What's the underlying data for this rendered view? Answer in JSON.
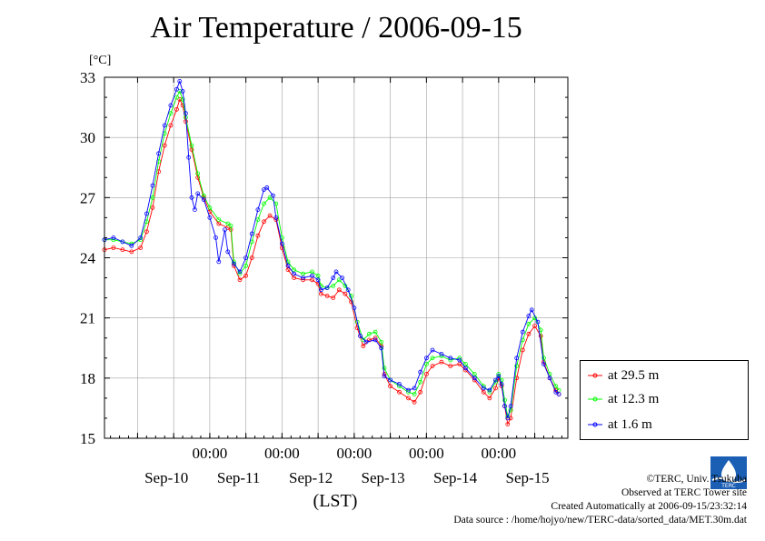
{
  "chart_data": {
    "type": "line",
    "title": "Air Temperature / 2006-09-15",
    "ylabel": "[°C]",
    "xlabel": "(LST)",
    "ylim": [
      15,
      33
    ],
    "yticks": [
      15,
      18,
      21,
      24,
      27,
      30,
      33
    ],
    "xlim": [
      "2006-09-09 13:00",
      "2006-09-15 23:00"
    ],
    "xtick_labels": [
      "00:00",
      "00:00",
      "00:00",
      "00:00",
      "00:00"
    ],
    "xtick_positions": [
      "2006-09-11 00:00",
      "2006-09-12 00:00",
      "2006-09-13 00:00",
      "2006-09-14 00:00",
      "2006-09-15 00:00"
    ],
    "day_labels": [
      "Sep-10",
      "Sep-11",
      "Sep-12",
      "Sep-13",
      "Sep-14",
      "Sep-15"
    ],
    "grid": true,
    "legend": "bottom-right, outside plot",
    "series": [
      {
        "name": "at 29.5 m",
        "color": "#ff0000",
        "points": [
          [
            "2006-09-09 13:00",
            24.4
          ],
          [
            "2006-09-09 16:00",
            24.5
          ],
          [
            "2006-09-09 19:00",
            24.4
          ],
          [
            "2006-09-09 22:00",
            24.3
          ],
          [
            "2006-09-10 01:00",
            24.5
          ],
          [
            "2006-09-10 03:00",
            25.3
          ],
          [
            "2006-09-10 05:00",
            26.5
          ],
          [
            "2006-09-10 07:00",
            28.3
          ],
          [
            "2006-09-10 09:00",
            29.6
          ],
          [
            "2006-09-10 11:00",
            30.6
          ],
          [
            "2006-09-10 13:00",
            31.4
          ],
          [
            "2006-09-10 14:00",
            31.9
          ],
          [
            "2006-09-10 15:00",
            31.6
          ],
          [
            "2006-09-10 16:00",
            30.8
          ],
          [
            "2006-09-10 18:00",
            29.4
          ],
          [
            "2006-09-10 20:00",
            28.0
          ],
          [
            "2006-09-10 22:00",
            27.0
          ],
          [
            "2006-09-11 00:00",
            26.3
          ],
          [
            "2006-09-11 03:00",
            25.7
          ],
          [
            "2006-09-11 06:00",
            25.5
          ],
          [
            "2006-09-11 07:00",
            25.4
          ],
          [
            "2006-09-11 08:00",
            23.6
          ],
          [
            "2006-09-11 10:00",
            22.9
          ],
          [
            "2006-09-11 12:00",
            23.1
          ],
          [
            "2006-09-11 14:00",
            24.0
          ],
          [
            "2006-09-11 16:00",
            25.1
          ],
          [
            "2006-09-11 18:00",
            25.8
          ],
          [
            "2006-09-11 20:00",
            26.1
          ],
          [
            "2006-09-11 22:00",
            25.9
          ],
          [
            "2006-09-12 00:00",
            24.5
          ],
          [
            "2006-09-12 02:00",
            23.4
          ],
          [
            "2006-09-12 04:00",
            23.0
          ],
          [
            "2006-09-12 07:00",
            22.9
          ],
          [
            "2006-09-12 10:00",
            22.9
          ],
          [
            "2006-09-12 12:00",
            22.7
          ],
          [
            "2006-09-12 13:00",
            22.2
          ],
          [
            "2006-09-12 15:00",
            22.1
          ],
          [
            "2006-09-12 17:00",
            22.0
          ],
          [
            "2006-09-12 19:00",
            22.4
          ],
          [
            "2006-09-12 21:00",
            22.2
          ],
          [
            "2006-09-12 23:00",
            21.8
          ],
          [
            "2006-09-13 01:00",
            20.5
          ],
          [
            "2006-09-13 03:00",
            19.6
          ],
          [
            "2006-09-13 05:00",
            19.9
          ],
          [
            "2006-09-13 07:00",
            20.0
          ],
          [
            "2006-09-13 09:00",
            19.6
          ],
          [
            "2006-09-13 10:00",
            18.2
          ],
          [
            "2006-09-13 12:00",
            17.6
          ],
          [
            "2006-09-13 15:00",
            17.3
          ],
          [
            "2006-09-13 18:00",
            17.0
          ],
          [
            "2006-09-13 20:00",
            16.8
          ],
          [
            "2006-09-13 22:00",
            17.3
          ],
          [
            "2006-09-14 00:00",
            18.2
          ],
          [
            "2006-09-14 02:00",
            18.6
          ],
          [
            "2006-09-14 05:00",
            18.8
          ],
          [
            "2006-09-14 08:00",
            18.6
          ],
          [
            "2006-09-14 11:00",
            18.7
          ],
          [
            "2006-09-14 13:00",
            18.4
          ],
          [
            "2006-09-14 16:00",
            17.9
          ],
          [
            "2006-09-14 19:00",
            17.3
          ],
          [
            "2006-09-14 21:00",
            17.0
          ],
          [
            "2006-09-14 23:00",
            17.5
          ],
          [
            "2006-09-15 00:00",
            18.0
          ],
          [
            "2006-09-15 01:00",
            17.6
          ],
          [
            "2006-09-15 02:00",
            16.6
          ],
          [
            "2006-09-15 03:00",
            15.7
          ],
          [
            "2006-09-15 04:00",
            16.0
          ],
          [
            "2006-09-15 06:00",
            18.0
          ],
          [
            "2006-09-15 08:00",
            19.4
          ],
          [
            "2006-09-15 10:00",
            20.2
          ],
          [
            "2006-09-15 12:00",
            20.6
          ],
          [
            "2006-09-15 14:00",
            20.1
          ],
          [
            "2006-09-15 15:00",
            18.8
          ],
          [
            "2006-09-15 17:00",
            18.0
          ],
          [
            "2006-09-15 19:00",
            17.4
          ],
          [
            "2006-09-15 20:00",
            17.2
          ]
        ]
      },
      {
        "name": "at 12.3 m",
        "color": "#00ff00",
        "points": [
          [
            "2006-09-09 13:00",
            24.9
          ],
          [
            "2006-09-09 16:00",
            24.9
          ],
          [
            "2006-09-09 19:00",
            24.8
          ],
          [
            "2006-09-09 22:00",
            24.7
          ],
          [
            "2006-09-10 01:00",
            24.9
          ],
          [
            "2006-09-10 03:00",
            25.8
          ],
          [
            "2006-09-10 05:00",
            27.0
          ],
          [
            "2006-09-10 07:00",
            28.8
          ],
          [
            "2006-09-10 09:00",
            30.2
          ],
          [
            "2006-09-10 11:00",
            31.2
          ],
          [
            "2006-09-10 13:00",
            32.0
          ],
          [
            "2006-09-10 14:00",
            32.3
          ],
          [
            "2006-09-10 15:00",
            31.9
          ],
          [
            "2006-09-10 16:00",
            31.0
          ],
          [
            "2006-09-10 18:00",
            29.6
          ],
          [
            "2006-09-10 20:00",
            28.2
          ],
          [
            "2006-09-10 22:00",
            27.1
          ],
          [
            "2006-09-11 00:00",
            26.5
          ],
          [
            "2006-09-11 03:00",
            25.9
          ],
          [
            "2006-09-11 06:00",
            25.7
          ],
          [
            "2006-09-11 07:00",
            25.6
          ],
          [
            "2006-09-11 08:00",
            23.8
          ],
          [
            "2006-09-11 10:00",
            23.2
          ],
          [
            "2006-09-11 12:00",
            23.6
          ],
          [
            "2006-09-11 14:00",
            24.8
          ],
          [
            "2006-09-11 16:00",
            25.9
          ],
          [
            "2006-09-11 18:00",
            26.7
          ],
          [
            "2006-09-11 20:00",
            27.0
          ],
          [
            "2006-09-11 22:00",
            26.7
          ],
          [
            "2006-09-12 00:00",
            25.0
          ],
          [
            "2006-09-12 02:00",
            23.8
          ],
          [
            "2006-09-12 04:00",
            23.4
          ],
          [
            "2006-09-12 07:00",
            23.2
          ],
          [
            "2006-09-12 10:00",
            23.3
          ],
          [
            "2006-09-12 12:00",
            23.1
          ],
          [
            "2006-09-12 13:00",
            22.6
          ],
          [
            "2006-09-12 15:00",
            22.5
          ],
          [
            "2006-09-12 17:00",
            22.6
          ],
          [
            "2006-09-12 19:00",
            22.9
          ],
          [
            "2006-09-12 21:00",
            22.6
          ],
          [
            "2006-09-12 23:00",
            22.1
          ],
          [
            "2006-09-13 01:00",
            20.8
          ],
          [
            "2006-09-13 03:00",
            19.9
          ],
          [
            "2006-09-13 05:00",
            20.2
          ],
          [
            "2006-09-13 07:00",
            20.3
          ],
          [
            "2006-09-13 09:00",
            19.8
          ],
          [
            "2006-09-13 10:00",
            18.5
          ],
          [
            "2006-09-13 12:00",
            17.9
          ],
          [
            "2006-09-13 15:00",
            17.6
          ],
          [
            "2006-09-13 18:00",
            17.3
          ],
          [
            "2006-09-13 20:00",
            17.2
          ],
          [
            "2006-09-13 22:00",
            17.8
          ],
          [
            "2006-09-14 00:00",
            18.7
          ],
          [
            "2006-09-14 02:00",
            19.0
          ],
          [
            "2006-09-14 05:00",
            19.1
          ],
          [
            "2006-09-14 08:00",
            18.9
          ],
          [
            "2006-09-14 11:00",
            19.0
          ],
          [
            "2006-09-14 13:00",
            18.7
          ],
          [
            "2006-09-14 16:00",
            18.2
          ],
          [
            "2006-09-14 19:00",
            17.6
          ],
          [
            "2006-09-14 21:00",
            17.3
          ],
          [
            "2006-09-14 23:00",
            17.8
          ],
          [
            "2006-09-15 00:00",
            18.2
          ],
          [
            "2006-09-15 01:00",
            17.9
          ],
          [
            "2006-09-15 02:00",
            16.9
          ],
          [
            "2006-09-15 03:00",
            16.1
          ],
          [
            "2006-09-15 04:00",
            16.4
          ],
          [
            "2006-09-15 06:00",
            18.6
          ],
          [
            "2006-09-15 08:00",
            19.9
          ],
          [
            "2006-09-15 10:00",
            20.7
          ],
          [
            "2006-09-15 12:00",
            21.0
          ],
          [
            "2006-09-15 14:00",
            20.4
          ],
          [
            "2006-09-15 15:00",
            19.0
          ],
          [
            "2006-09-15 17:00",
            18.2
          ],
          [
            "2006-09-15 19:00",
            17.6
          ],
          [
            "2006-09-15 20:00",
            17.4
          ]
        ]
      },
      {
        "name": "at 1.6 m",
        "color": "#0000ff",
        "points": [
          [
            "2006-09-09 13:00",
            24.9
          ],
          [
            "2006-09-09 16:00",
            25.0
          ],
          [
            "2006-09-09 19:00",
            24.8
          ],
          [
            "2006-09-09 22:00",
            24.6
          ],
          [
            "2006-09-10 01:00",
            25.0
          ],
          [
            "2006-09-10 03:00",
            26.2
          ],
          [
            "2006-09-10 05:00",
            27.6
          ],
          [
            "2006-09-10 07:00",
            29.2
          ],
          [
            "2006-09-10 09:00",
            30.6
          ],
          [
            "2006-09-10 11:00",
            31.6
          ],
          [
            "2006-09-10 13:00",
            32.4
          ],
          [
            "2006-09-10 14:00",
            32.8
          ],
          [
            "2006-09-10 15:00",
            32.3
          ],
          [
            "2006-09-10 16:00",
            31.2
          ],
          [
            "2006-09-10 17:00",
            29.0
          ],
          [
            "2006-09-10 18:00",
            27.0
          ],
          [
            "2006-09-10 19:00",
            26.4
          ],
          [
            "2006-09-10 20:00",
            27.2
          ],
          [
            "2006-09-10 22:00",
            26.9
          ],
          [
            "2006-09-11 00:00",
            26.0
          ],
          [
            "2006-09-11 02:00",
            25.0
          ],
          [
            "2006-09-11 03:00",
            23.8
          ],
          [
            "2006-09-11 05:00",
            25.4
          ],
          [
            "2006-09-11 06:00",
            24.3
          ],
          [
            "2006-09-11 08:00",
            23.7
          ],
          [
            "2006-09-11 10:00",
            23.3
          ],
          [
            "2006-09-11 12:00",
            24.0
          ],
          [
            "2006-09-11 14:00",
            25.2
          ],
          [
            "2006-09-11 16:00",
            26.4
          ],
          [
            "2006-09-11 18:00",
            27.4
          ],
          [
            "2006-09-11 19:00",
            27.5
          ],
          [
            "2006-09-11 21:00",
            27.1
          ],
          [
            "2006-09-11 22:00",
            26.0
          ],
          [
            "2006-09-12 00:00",
            24.7
          ],
          [
            "2006-09-12 02:00",
            23.6
          ],
          [
            "2006-09-12 04:00",
            23.2
          ],
          [
            "2006-09-12 07:00",
            23.0
          ],
          [
            "2006-09-12 10:00",
            23.1
          ],
          [
            "2006-09-12 12:00",
            22.9
          ],
          [
            "2006-09-12 13:00",
            22.4
          ],
          [
            "2006-09-12 15:00",
            22.5
          ],
          [
            "2006-09-12 17:00",
            23.0
          ],
          [
            "2006-09-12 18:00",
            23.3
          ],
          [
            "2006-09-12 20:00",
            23.0
          ],
          [
            "2006-09-12 22:00",
            22.4
          ],
          [
            "2006-09-13 00:00",
            21.5
          ],
          [
            "2006-09-13 02:00",
            20.1
          ],
          [
            "2006-09-13 04:00",
            19.8
          ],
          [
            "2006-09-13 07:00",
            19.9
          ],
          [
            "2006-09-13 09:00",
            19.5
          ],
          [
            "2006-09-13 10:00",
            18.1
          ],
          [
            "2006-09-13 12:00",
            17.9
          ],
          [
            "2006-09-13 15:00",
            17.7
          ],
          [
            "2006-09-13 18:00",
            17.4
          ],
          [
            "2006-09-13 20:00",
            17.5
          ],
          [
            "2006-09-13 22:00",
            18.3
          ],
          [
            "2006-09-14 00:00",
            19.0
          ],
          [
            "2006-09-14 02:00",
            19.4
          ],
          [
            "2006-09-14 05:00",
            19.2
          ],
          [
            "2006-09-14 08:00",
            19.0
          ],
          [
            "2006-09-14 11:00",
            18.9
          ],
          [
            "2006-09-14 13:00",
            18.5
          ],
          [
            "2006-09-14 16:00",
            18.0
          ],
          [
            "2006-09-14 19:00",
            17.5
          ],
          [
            "2006-09-14 21:00",
            17.4
          ],
          [
            "2006-09-14 23:00",
            17.9
          ],
          [
            "2006-09-15 00:00",
            18.1
          ],
          [
            "2006-09-15 01:00",
            17.7
          ],
          [
            "2006-09-15 02:00",
            16.6
          ],
          [
            "2006-09-15 03:00",
            16.0
          ],
          [
            "2006-09-15 04:00",
            16.6
          ],
          [
            "2006-09-15 06:00",
            19.0
          ],
          [
            "2006-09-15 08:00",
            20.3
          ],
          [
            "2006-09-15 10:00",
            21.1
          ],
          [
            "2006-09-15 11:00",
            21.4
          ],
          [
            "2006-09-15 13:00",
            20.8
          ],
          [
            "2006-09-15 15:00",
            18.7
          ],
          [
            "2006-09-15 17:00",
            18.0
          ],
          [
            "2006-09-15 19:00",
            17.3
          ],
          [
            "2006-09-15 20:00",
            17.2
          ]
        ]
      }
    ]
  },
  "legend": {
    "items": [
      {
        "label": "at 29.5 m",
        "color": "#ff0000"
      },
      {
        "label": "at 12.3 m",
        "color": "#00ff00"
      },
      {
        "label": "at 1.6 m",
        "color": "#0000ff"
      }
    ]
  },
  "credits": {
    "line1": "©TERC, Univ. Tsukuba",
    "line2": "Observed at TERC Tower site",
    "line3": "Created Automatically at 2006-09-15/23:32:14",
    "line4": "Data source : /home/hojyo/new/TERC-data/sorted_data/MET.30m.dat"
  },
  "logo": {
    "text": "TERC",
    "icon": "terc-logo-icon"
  }
}
